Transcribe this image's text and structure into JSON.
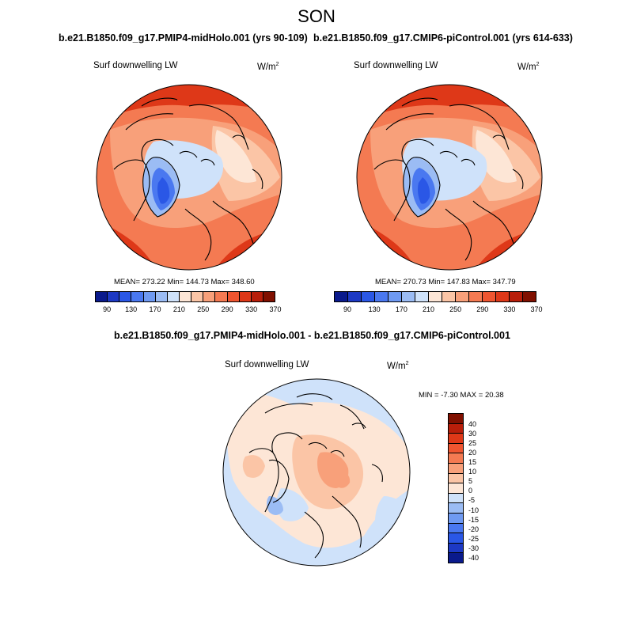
{
  "figure": {
    "season": "SON"
  },
  "panels": [
    {
      "title": "b.e21.B1850.f09_g17.PMIP4-midHolo.001 (yrs 90-109)",
      "variable": "Surf downwelling LW",
      "units": "W/m",
      "units_exp": "2",
      "stats": "MEAN= 273.22  Min= 144.73  Max= 348.60"
    },
    {
      "title": "b.e21.B1850.f09_g17.CMIP6-piControl.001 (yrs 614-633)",
      "variable": "Surf downwelling LW",
      "units": "W/m",
      "units_exp": "2",
      "stats": "MEAN= 270.73  Min= 147.83  Max= 347.79"
    },
    {
      "title": "b.e21.B1850.f09_g17.PMIP4-midHolo.001 - b.e21.B1850.f09_g17.CMIP6-piControl.001",
      "variable": "Surf downwelling LW",
      "units": "W/m",
      "units_exp": "2",
      "stats": "MIN =  -7.30 MAX =  20.38"
    }
  ],
  "colorbar_abs": {
    "colors": [
      "#0a1a8c",
      "#1d39c4",
      "#2a57e6",
      "#4a78f0",
      "#6f9af2",
      "#9bbcf4",
      "#cfe2fa",
      "#fde6d6",
      "#fbc5a6",
      "#f8a07a",
      "#f47a52",
      "#ef5530",
      "#de3818",
      "#b81e0a",
      "#801000"
    ],
    "tick_labels": [
      "90",
      "130",
      "170",
      "210",
      "250",
      "290",
      "330",
      "370"
    ]
  },
  "colorbar_diff": {
    "colors": [
      "#0a1a8c",
      "#1d39c4",
      "#2a57e6",
      "#4a78f0",
      "#6f9af2",
      "#9bbcf4",
      "#cfe2fa",
      "#fde6d6",
      "#fbc5a6",
      "#f8a07a",
      "#f47a52",
      "#ef5530",
      "#de3818",
      "#b81e0a",
      "#801000"
    ],
    "tick_labels": [
      "40",
      "30",
      "25",
      "20",
      "15",
      "10",
      "5",
      "0",
      "-5",
      "-10",
      "-15",
      "-20",
      "-25",
      "-30",
      "-40"
    ]
  },
  "colors": {
    "ocean_warm": "#f47a52",
    "deep_warm": "#de3818",
    "mid_warm": "#f8a07a",
    "light_warm": "#fbc5a6",
    "pale_warm": "#fde6d6",
    "pale_cool": "#cfe2fa",
    "cool": "#9bbcf4",
    "greenland_dark": "#2a57e6",
    "greenland_mid": "#4a78f0"
  }
}
